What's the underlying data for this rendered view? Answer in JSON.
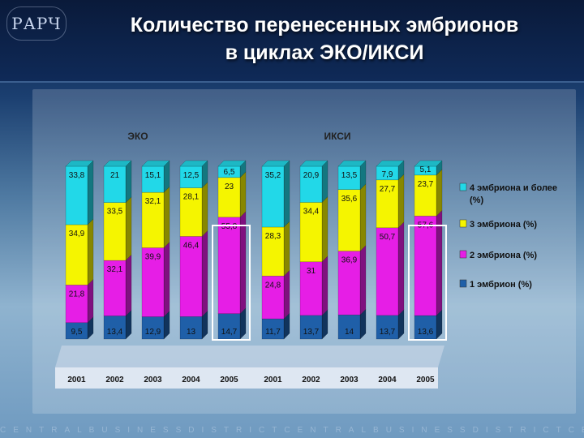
{
  "header": {
    "logo_text": "РАРЧ",
    "title_line1": "Количество перенесенных эмбрионов",
    "title_line2": "в циклах ЭКО/ИКСИ"
  },
  "footer": {
    "strip_text": "CENTRALBUSINESSDISTRICTCENTRALBUSINESSDISTRICTCENTRAL"
  },
  "chart_data": {
    "type": "bar",
    "stacked": true,
    "unit": "%",
    "groups": [
      {
        "name": "ЭКО",
        "categories": [
          "2001",
          "2002",
          "2003",
          "2004",
          "2005"
        ],
        "highlight_index": 4
      },
      {
        "name": "ИКСИ",
        "categories": [
          "2001",
          "2002",
          "2003",
          "2004",
          "2005"
        ],
        "highlight_index": 4
      }
    ],
    "series": [
      {
        "name": "1 эмбрион (%)",
        "color": "#1f5fa8",
        "values": [
          [
            9.5,
            13.4,
            12.9,
            13,
            14.7
          ],
          [
            11.7,
            13.7,
            14,
            13.7,
            13.6
          ]
        ]
      },
      {
        "name": "2 эмбриона (%)",
        "color": "#e61ee6",
        "values": [
          [
            21.8,
            32.1,
            39.9,
            46.4,
            55.8
          ],
          [
            24.8,
            31,
            36.9,
            50.7,
            57.6
          ]
        ]
      },
      {
        "name": "3 эмбриона (%)",
        "color": "#f5f500",
        "values": [
          [
            34.9,
            33.5,
            32.1,
            28.1,
            23
          ],
          [
            28.3,
            34.4,
            35.6,
            27.7,
            23.7
          ]
        ]
      },
      {
        "name": "4 эмбриона и более (%)",
        "color": "#22d8e8",
        "values": [
          [
            33.8,
            21,
            15.1,
            12.5,
            6.5
          ],
          [
            35.2,
            20.9,
            13.5,
            7.9,
            5.1
          ]
        ]
      }
    ],
    "legend_position": "right",
    "ylim": [
      0,
      100
    ]
  }
}
